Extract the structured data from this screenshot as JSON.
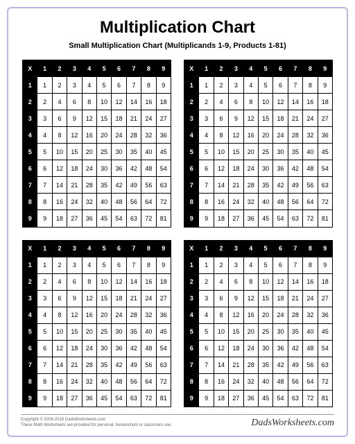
{
  "title": "Multiplication Chart",
  "subtitle": "Small Multiplication Chart (Multiplicands 1-9, Products 1-81)",
  "corner_symbol": "X",
  "range": {
    "min": 1,
    "max": 9
  },
  "table_count": 4,
  "colors": {
    "page_border": "#b8b8e8",
    "header_bg": "#000000",
    "header_fg": "#ffffff",
    "cell_bg": "#ffffff",
    "cell_fg": "#000000",
    "cell_border": "#000000"
  },
  "footer": {
    "copyright": "Copyright © 2008-2018 DadsWorksheets.com",
    "note": "These Math Worksheets are provided for personal, homeschool or classroom use.",
    "brand": "DadsWorksheets.com"
  }
}
